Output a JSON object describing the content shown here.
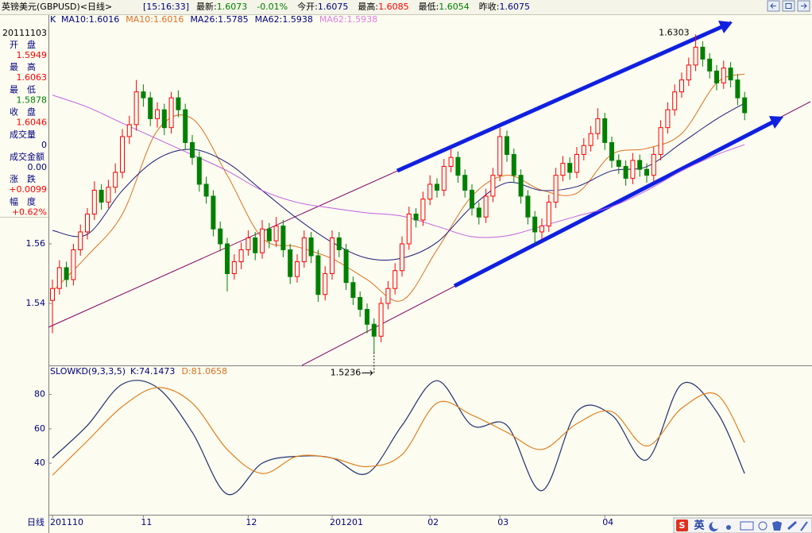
{
  "header": {
    "title": "英镑美元(GBPUSD)<日线>",
    "time": "[15:16:33]",
    "quote": [
      {
        "label": "最新:",
        "value": 1.6073,
        "color": "#008000"
      },
      {
        "value": "-0.01%",
        "color": "#008000"
      },
      {
        "label": "今开:",
        "value": 1.6075,
        "color": "#000080"
      },
      {
        "label": "最高:",
        "value": 1.6085,
        "color": "#ff0000"
      },
      {
        "label": "最低:",
        "value": 1.6054,
        "color": "#008000"
      },
      {
        "label": "昨收:",
        "value": 1.6075,
        "color": "#000080"
      }
    ]
  },
  "sidebar": {
    "date": "20111103",
    "items": [
      {
        "label": "开　盘",
        "value": 1.5949,
        "color": "#ff0000"
      },
      {
        "label": "最　高",
        "value": 1.6063,
        "color": "#ff0000"
      },
      {
        "label": "最　低",
        "value": 1.5878,
        "color": "#008000"
      },
      {
        "label": "收　盘",
        "value": 1.6046,
        "color": "#ff0000"
      },
      {
        "label": "成交量",
        "value": 0,
        "color": "#000080"
      },
      {
        "label": "成交金额",
        "value": "0.00",
        "color": "#000080"
      },
      {
        "label": "涨　跌",
        "value": "+0.0099",
        "color": "#ff0000"
      },
      {
        "label": "幅　度",
        "value": "+0.62%",
        "color": "#ff0000"
      }
    ]
  },
  "ime": {
    "logo": "S",
    "lang": "英"
  },
  "chart_data": [
    {
      "type": "candlestick",
      "indicator": "K",
      "xlabel": "日线",
      "legend": [
        {
          "label": "MA10:",
          "value": 1.6016,
          "color": "#000080"
        },
        {
          "label": "MA10:",
          "value": 1.6016,
          "color": "#e07020"
        },
        {
          "label": "MA26:",
          "value": 1.5785,
          "color": "#000080"
        },
        {
          "label": "MA62:",
          "value": 1.5938,
          "color": "#000080"
        },
        {
          "label": "MA62:",
          "value": 1.5938,
          "color": "#e080e0"
        }
      ],
      "categories": [
        "201110",
        null,
        null,
        null,
        null,
        null,
        null,
        null,
        null,
        null,
        null,
        null,
        null,
        "11",
        null,
        null,
        null,
        null,
        null,
        null,
        null,
        null,
        null,
        null,
        null,
        null,
        null,
        null,
        "12",
        null,
        null,
        null,
        null,
        null,
        null,
        null,
        null,
        null,
        null,
        null,
        "201201",
        null,
        null,
        null,
        null,
        null,
        null,
        null,
        null,
        null,
        null,
        null,
        null,
        null,
        "02",
        null,
        null,
        null,
        null,
        null,
        null,
        null,
        null,
        null,
        "03",
        null,
        null,
        null,
        null,
        null,
        null,
        null,
        null,
        null,
        null,
        null,
        null,
        null,
        null,
        "04",
        null,
        null,
        null,
        null,
        null,
        null,
        null,
        null,
        null,
        null,
        null,
        null,
        null,
        null,
        null,
        null,
        null,
        null,
        null,
        null
      ],
      "open": [
        1.541,
        1.545,
        1.552,
        1.548,
        1.558,
        1.564,
        1.57,
        1.578,
        1.574,
        1.579,
        1.584,
        1.596,
        1.6,
        1.611,
        1.609,
        1.602,
        1.605,
        1.599,
        1.609,
        1.605,
        1.594,
        1.589,
        1.58,
        1.576,
        1.565,
        1.56,
        1.55,
        1.554,
        1.558,
        1.562,
        1.557,
        1.565,
        1.561,
        1.566,
        1.558,
        1.549,
        1.554,
        1.562,
        1.556,
        1.543,
        1.55,
        1.562,
        1.558,
        1.547,
        1.542,
        1.538,
        1.533,
        1.529,
        1.54,
        1.545,
        1.551,
        1.56,
        1.57,
        1.568,
        1.575,
        1.58,
        1.578,
        1.586,
        1.589,
        1.583,
        1.578,
        1.572,
        1.569,
        1.576,
        1.583,
        1.596,
        1.59,
        1.583,
        1.576,
        1.569,
        1.564,
        1.566,
        1.574,
        1.583,
        1.587,
        1.584,
        1.59,
        1.593,
        1.597,
        1.602,
        1.594,
        1.588,
        1.586,
        1.582,
        1.588,
        1.585,
        1.583,
        1.59,
        1.599,
        1.605,
        1.611,
        1.615,
        1.62,
        1.626,
        1.622,
        1.618,
        1.614,
        1.619,
        1.615,
        1.609
      ],
      "high": [
        1.548,
        1.5545,
        1.554,
        1.56,
        1.5665,
        1.572,
        1.581,
        1.58,
        1.5815,
        1.587,
        1.5985,
        1.603,
        1.615,
        1.6135,
        1.611,
        1.6075,
        1.607,
        1.611,
        1.6115,
        1.607,
        1.5965,
        1.591,
        1.5825,
        1.578,
        1.5675,
        1.562,
        1.5565,
        1.5605,
        1.5645,
        1.564,
        1.568,
        1.567,
        1.569,
        1.568,
        1.56,
        1.5565,
        1.5645,
        1.564,
        1.558,
        1.5525,
        1.5645,
        1.564,
        1.56,
        1.549,
        1.544,
        1.54,
        1.535,
        1.542,
        1.5475,
        1.5535,
        1.5625,
        1.5725,
        1.572,
        1.5775,
        1.583,
        1.582,
        1.5885,
        1.592,
        1.591,
        1.585,
        1.58,
        1.574,
        1.5785,
        1.5855,
        1.599,
        1.598,
        1.592,
        1.585,
        1.578,
        1.571,
        1.5685,
        1.5765,
        1.5855,
        1.5895,
        1.589,
        1.5925,
        1.5955,
        1.5995,
        1.6055,
        1.604,
        1.596,
        1.59,
        1.588,
        1.5905,
        1.59,
        1.587,
        1.5925,
        1.6015,
        1.6075,
        1.6135,
        1.6175,
        1.6225,
        1.6303,
        1.628,
        1.624,
        1.62,
        1.6215,
        1.621,
        1.617,
        1.611
      ],
      "low": [
        1.53,
        1.543,
        1.5455,
        1.546,
        1.556,
        1.5615,
        1.568,
        1.5715,
        1.572,
        1.577,
        1.582,
        1.5935,
        1.598,
        1.606,
        1.5995,
        1.599,
        1.5965,
        1.597,
        1.6025,
        1.5915,
        1.5865,
        1.5775,
        1.5735,
        1.5625,
        1.5575,
        1.544,
        1.548,
        1.5515,
        1.556,
        1.5545,
        1.555,
        1.5585,
        1.559,
        1.5555,
        1.5465,
        1.547,
        1.552,
        1.5535,
        1.5405,
        1.541,
        1.548,
        1.5555,
        1.5445,
        1.5395,
        1.5355,
        1.53,
        1.5236,
        1.527,
        1.538,
        1.543,
        1.549,
        1.558,
        1.5655,
        1.566,
        1.573,
        1.5755,
        1.576,
        1.584,
        1.5805,
        1.5755,
        1.5695,
        1.5665,
        1.567,
        1.574,
        1.581,
        1.5875,
        1.5805,
        1.5735,
        1.5665,
        1.56,
        1.5615,
        1.564,
        1.572,
        1.581,
        1.5815,
        1.582,
        1.588,
        1.591,
        1.595,
        1.5915,
        1.5855,
        1.5835,
        1.5795,
        1.58,
        1.5825,
        1.5805,
        1.581,
        1.588,
        1.597,
        1.603,
        1.609,
        1.613,
        1.618,
        1.6195,
        1.6155,
        1.6115,
        1.612,
        1.6125,
        1.6065,
        1.6015
      ],
      "close": [
        1.545,
        1.552,
        1.548,
        1.558,
        1.564,
        1.57,
        1.578,
        1.574,
        1.579,
        1.584,
        1.596,
        1.6,
        1.611,
        1.609,
        1.602,
        1.605,
        1.599,
        1.609,
        1.605,
        1.594,
        1.589,
        1.58,
        1.576,
        1.565,
        1.56,
        1.55,
        1.554,
        1.558,
        1.562,
        1.557,
        1.565,
        1.561,
        1.566,
        1.558,
        1.549,
        1.554,
        1.562,
        1.556,
        1.543,
        1.55,
        1.562,
        1.558,
        1.547,
        1.542,
        1.538,
        1.533,
        1.529,
        1.54,
        1.545,
        1.551,
        1.56,
        1.57,
        1.568,
        1.575,
        1.58,
        1.578,
        1.586,
        1.589,
        1.583,
        1.578,
        1.572,
        1.569,
        1.576,
        1.583,
        1.596,
        1.59,
        1.583,
        1.576,
        1.569,
        1.564,
        1.566,
        1.574,
        1.583,
        1.587,
        1.584,
        1.59,
        1.593,
        1.597,
        1.602,
        1.594,
        1.588,
        1.586,
        1.582,
        1.588,
        1.585,
        1.583,
        1.59,
        1.599,
        1.605,
        1.611,
        1.615,
        1.62,
        1.626,
        1.622,
        1.618,
        1.614,
        1.619,
        1.615,
        1.609,
        1.604
      ],
      "up_color": "#ff0000",
      "down_color": "#008000",
      "lines": [
        {
          "color": "#e07020",
          "x": [
            0,
            5,
            10,
            15,
            20,
            25,
            30,
            35,
            40,
            45,
            50,
            55,
            60,
            65,
            70,
            75,
            80,
            85,
            90,
            95,
            99
          ],
          "values": [
            1.544,
            1.556,
            1.57,
            1.598,
            1.602,
            1.583,
            1.562,
            1.559,
            1.555,
            1.548,
            1.541,
            1.558,
            1.576,
            1.583,
            1.578,
            1.577,
            1.59,
            1.592,
            1.597,
            1.614,
            1.617
          ]
        },
        {
          "color": "#1a1a7a",
          "x": [
            0,
            5,
            10,
            15,
            20,
            25,
            30,
            35,
            40,
            45,
            50,
            55,
            60,
            65,
            70,
            75,
            80,
            85,
            90,
            95,
            99
          ],
          "values": [
            1.5645,
            1.5632,
            1.5779,
            1.5885,
            1.5917,
            1.5872,
            1.5779,
            1.5685,
            1.5605,
            1.5552,
            1.5552,
            1.5605,
            1.5725,
            1.5805,
            1.5779,
            1.5792,
            1.5845,
            1.5859,
            1.5939,
            1.6019,
            1.6072
          ]
        },
        {
          "color": "#c060e0",
          "x": [
            0,
            5,
            10,
            15,
            20,
            25,
            30,
            35,
            40,
            45,
            50,
            55,
            60,
            65,
            70,
            75,
            80,
            85,
            90,
            95,
            99
          ],
          "values": [
            1.6099,
            1.6059,
            1.6005,
            1.5952,
            1.5899,
            1.5845,
            1.5779,
            1.5739,
            1.572,
            1.5704,
            1.5693,
            1.5659,
            1.5624,
            1.5627,
            1.5659,
            1.5693,
            1.5725,
            1.5779,
            1.5845,
            1.5899,
            1.5933
          ]
        }
      ],
      "ylim": [
        1.5192,
        1.6365
      ],
      "yticks": [
        1.54,
        1.56
      ],
      "grid": false
    },
    {
      "type": "line",
      "title": "SLOWKD(9,3,3,5)",
      "legend": [
        {
          "label": "K:",
          "value": 74.1473,
          "color": "#000080"
        },
        {
          "label": "D:",
          "value": 81.0658,
          "color": "#e07020"
        }
      ],
      "series": [
        {
          "color": "#1f2f6f",
          "x": [
            0,
            5,
            10,
            15,
            20,
            25,
            30,
            35,
            40,
            45,
            50,
            55,
            60,
            65,
            70,
            75,
            80,
            85,
            90,
            95,
            99
          ],
          "values": [
            43,
            62,
            86,
            84,
            58,
            22,
            40,
            44,
            43,
            34,
            62,
            88,
            62,
            62,
            24,
            70,
            68,
            42,
            86,
            70,
            34
          ]
        },
        {
          "color": "#e08020",
          "x": [
            0,
            5,
            10,
            15,
            20,
            25,
            30,
            35,
            40,
            45,
            50,
            55,
            60,
            65,
            70,
            75,
            80,
            85,
            90,
            95,
            99
          ],
          "values": [
            33,
            53,
            73,
            84,
            75,
            48,
            34,
            44,
            43,
            38,
            45,
            75,
            68,
            58,
            48,
            63,
            70,
            50,
            72,
            80,
            52
          ]
        }
      ],
      "ylim": [
        10,
        96
      ],
      "yticks": [
        40,
        60,
        80
      ],
      "grid": false
    }
  ]
}
